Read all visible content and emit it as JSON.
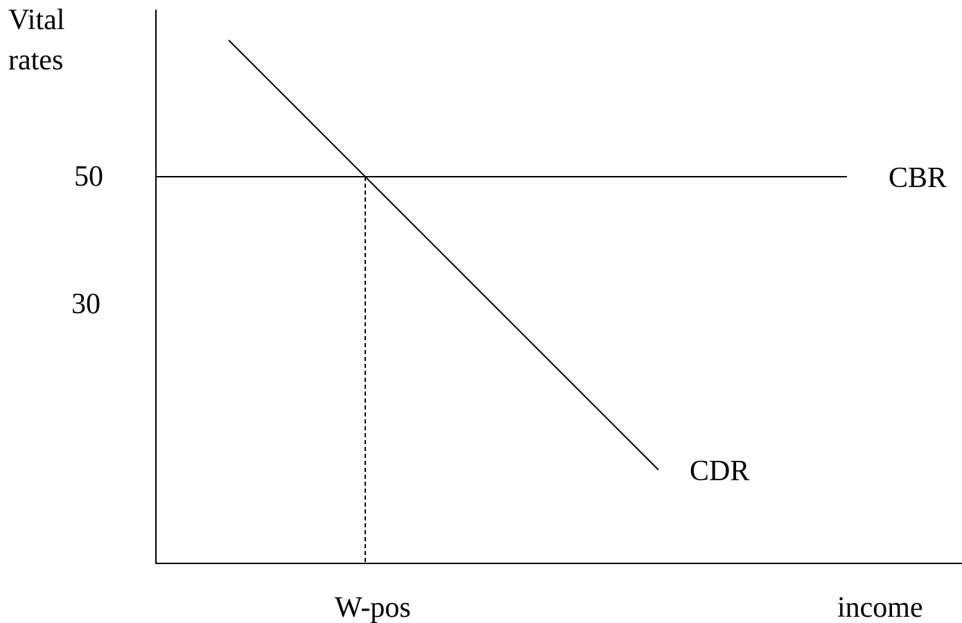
{
  "y_axis": {
    "label_lines": [
      "Vital",
      "rates"
    ],
    "ticks": [
      "50",
      "30"
    ]
  },
  "x_axis": {
    "label": "income",
    "marker": "W-pos"
  },
  "curves": [
    {
      "label": "CBR"
    },
    {
      "label": "CDR"
    }
  ]
}
